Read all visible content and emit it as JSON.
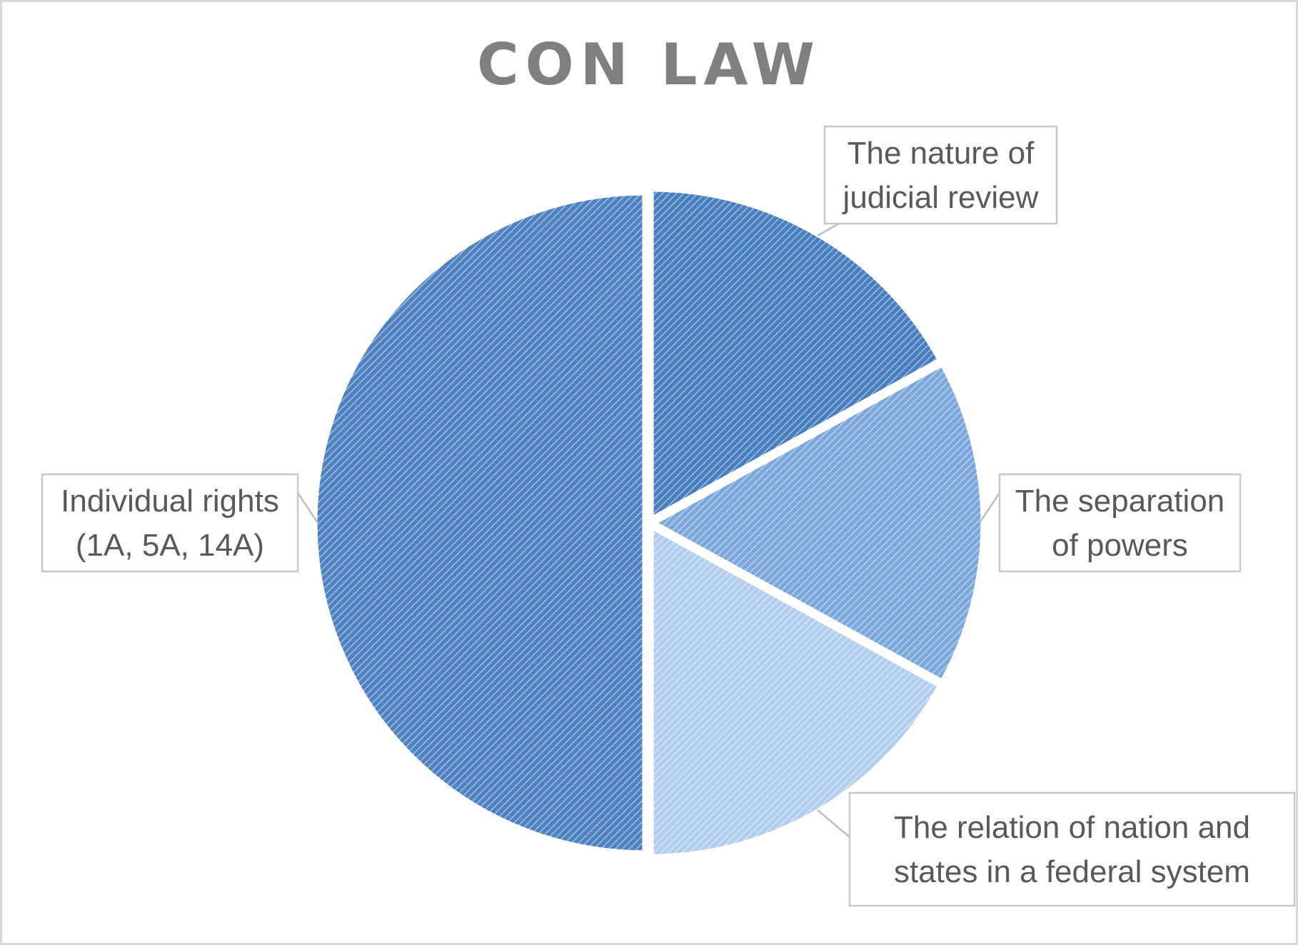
{
  "chart_data": {
    "type": "pie",
    "title": "CON LAW",
    "slices": [
      {
        "label": "The nature of judicial review",
        "lines": [
          "The nature of",
          "judicial review"
        ],
        "value": 17,
        "color": "#4a7fbf"
      },
      {
        "label": "The separation of powers",
        "lines": [
          "The separation",
          "of powers"
        ],
        "value": 16,
        "color": "#7ba7dc"
      },
      {
        "label": "The relation of nation and states in a federal system",
        "lines": [
          "The relation of nation and",
          "states in a federal system"
        ],
        "value": 17,
        "color": "#b3cdee"
      },
      {
        "label": "Individual rights (1A, 5A, 14A)",
        "lines": [
          "Individual rights",
          "(1A, 5A, 14A)"
        ],
        "value": 50,
        "color": "#4f82c0"
      }
    ],
    "start_angle": "12 o'clock, clockwise",
    "data_labels": "category name callouts",
    "legend": "none"
  }
}
